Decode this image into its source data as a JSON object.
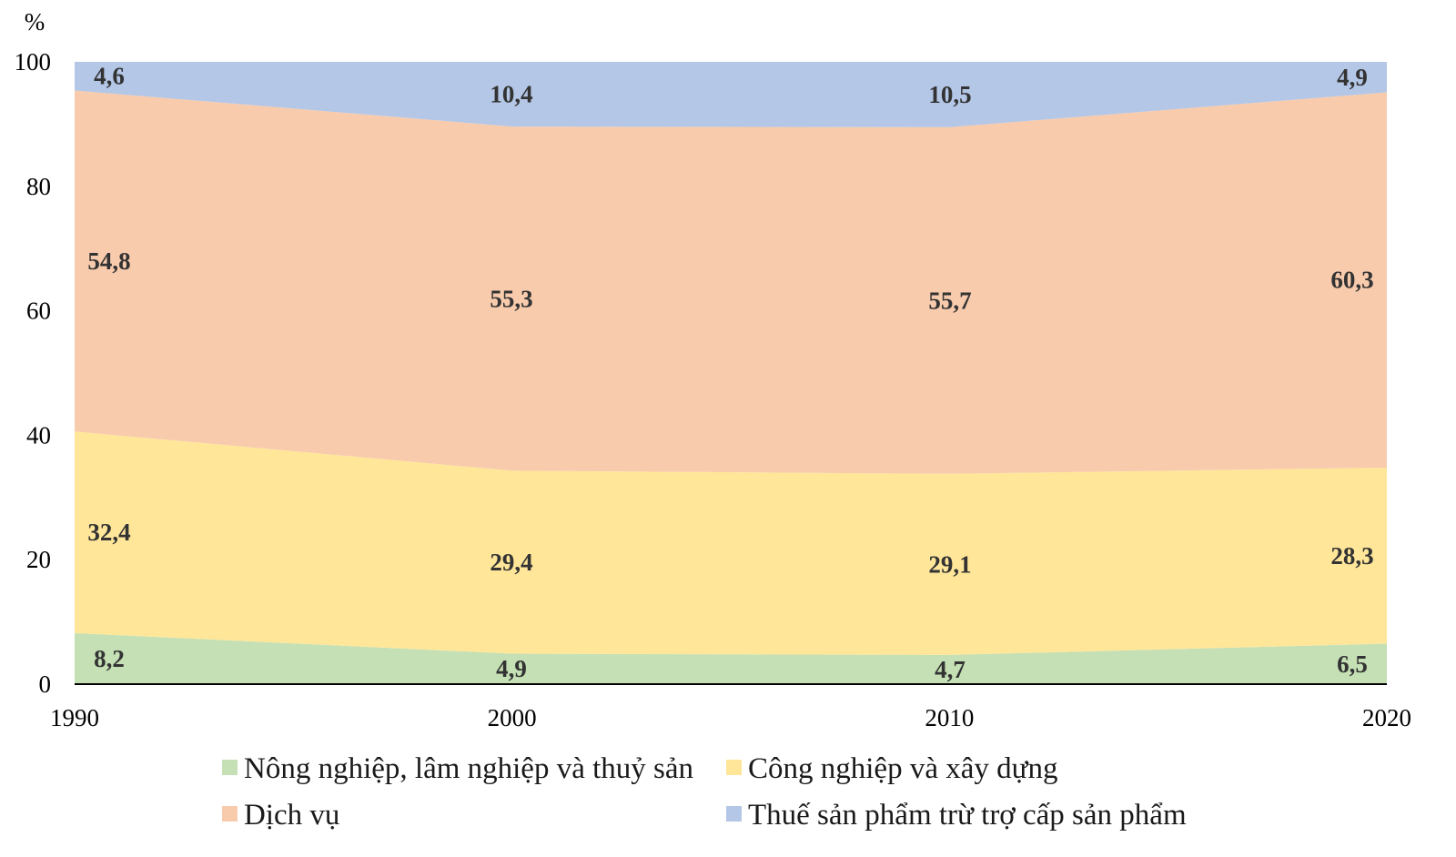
{
  "chart_data": {
    "type": "area",
    "stacked": true,
    "ylabel": "%",
    "ylim": [
      0,
      100
    ],
    "yticks": [
      "0",
      "20",
      "40",
      "60",
      "80",
      "100"
    ],
    "x": [
      1990,
      2000,
      2010,
      2020
    ],
    "x_labels": [
      "1990",
      "2000",
      "2010",
      "2020"
    ],
    "series": [
      {
        "name": "Nông nghiệp, lâm nghiệp và thuỷ sản",
        "values": [
          8.2,
          4.9,
          4.7,
          6.5
        ],
        "labels": [
          "8,2",
          "4,9",
          "4,7",
          "6,5"
        ],
        "color": "#c5e0b4"
      },
      {
        "name": "Công nghiệp và xây dựng",
        "values": [
          32.4,
          29.4,
          29.1,
          28.3
        ],
        "labels": [
          "32,4",
          "29,4",
          "29,1",
          "28,3"
        ],
        "color": "#ffe699"
      },
      {
        "name": "Dịch vụ",
        "values": [
          54.8,
          55.3,
          55.7,
          60.3
        ],
        "labels": [
          "54,8",
          "55,3",
          "55,7",
          "60,3"
        ],
        "color": "#f8cbad"
      },
      {
        "name": "Thuế sản phẩm trừ trợ cấp sản phẩm",
        "values": [
          4.6,
          10.4,
          10.5,
          4.9
        ],
        "labels": [
          "4,6",
          "10,4",
          "10,5",
          "4,9"
        ],
        "color": "#b4c7e7"
      }
    ],
    "grid": false,
    "legend_position": "bottom"
  }
}
